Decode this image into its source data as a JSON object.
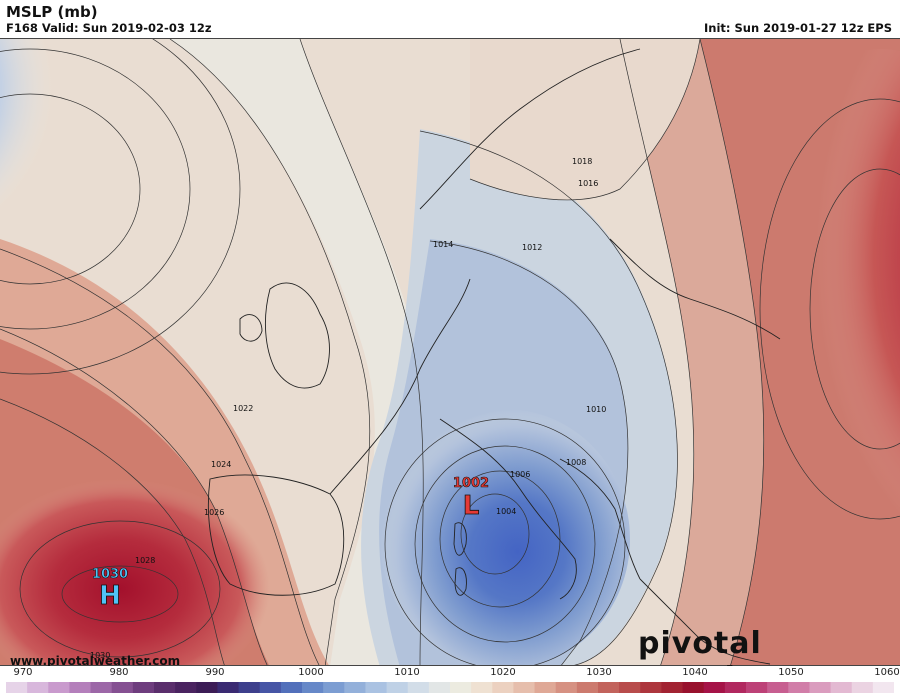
{
  "header": {
    "title": "MSLP (mb)",
    "valid": "F168 Valid: Sun 2019-02-03 12z",
    "init": "Init: Sun 2019-01-27 12z EPS"
  },
  "map": {
    "contour_labels": [
      "1018",
      "1016",
      "1014",
      "1012",
      "1010",
      "1008",
      "1006",
      "1004",
      "1022",
      "1024",
      "1026",
      "1028",
      "1030",
      "1006",
      "1020"
    ],
    "high": {
      "letter": "H",
      "value": "1030",
      "color": "#4fc3f7"
    },
    "low": {
      "letter": "L",
      "value": "1002",
      "color": "#e53935"
    }
  },
  "footer": {
    "website": "www.pivotalweather.com",
    "brand": "pivotal weather"
  },
  "colorbar": {
    "ticks": [
      "970",
      "980",
      "990",
      "1000",
      "1010",
      "1020",
      "1030",
      "1040",
      "1050",
      "1060"
    ],
    "colors": [
      "#e6d3e8",
      "#d8b7dc",
      "#c99acd",
      "#b47fbb",
      "#9c67a7",
      "#855092",
      "#6e3d7e",
      "#5a2e6c",
      "#4a2360",
      "#3c1c56",
      "#3a2a72",
      "#3d3f8c",
      "#4655a5",
      "#5270bb",
      "#6688c8",
      "#7c9dd2",
      "#93b0da",
      "#aac2e2",
      "#bfd1e6",
      "#d2dde8",
      "#e2e6e6",
      "#ecebe0",
      "#efe1d2",
      "#ecd1c0",
      "#e6beac",
      "#dfa896",
      "#d69182",
      "#cc7a6e",
      "#c2635c",
      "#b84c4b",
      "#ad363d",
      "#a22332",
      "#98112d",
      "#a51347",
      "#b1285f",
      "#bd4177",
      "#c75e90",
      "#d17da8",
      "#da9cbe",
      "#e3b9d2",
      "#ebd3e2",
      "#f2e6ef"
    ]
  }
}
